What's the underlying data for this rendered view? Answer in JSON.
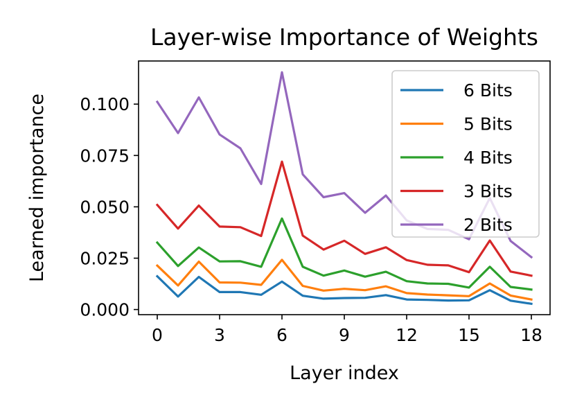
{
  "chart_data": {
    "type": "line",
    "title": "Layer-wise Importance of Weights",
    "xlabel": "Layer index",
    "ylabel": "Learned importance",
    "x": [
      0,
      1,
      2,
      3,
      4,
      5,
      6,
      7,
      8,
      9,
      10,
      11,
      12,
      13,
      14,
      15,
      16,
      17,
      18
    ],
    "xlim": [
      -0.9,
      18.9
    ],
    "ylim": [
      -0.0025,
      0.121
    ],
    "xticks": [
      0,
      3,
      6,
      9,
      12,
      15,
      18
    ],
    "xtick_labels": [
      "0",
      "3",
      "6",
      "9",
      "12",
      "15",
      "18"
    ],
    "yticks": [
      0.0,
      0.025,
      0.05,
      0.075,
      0.1
    ],
    "ytick_labels": [
      "0.000",
      "0.025",
      "0.050",
      "0.075",
      "0.100"
    ],
    "grid": false,
    "legend_position": "top-right",
    "series": [
      {
        "name": "6 Bits",
        "color": "#1f77b4",
        "values": [
          0.0162,
          0.0063,
          0.0159,
          0.0085,
          0.0085,
          0.0072,
          0.0136,
          0.0067,
          0.0053,
          0.0056,
          0.0057,
          0.007,
          0.0049,
          0.0047,
          0.0044,
          0.0045,
          0.0094,
          0.0043,
          0.0028
        ]
      },
      {
        "name": "5 Bits",
        "color": "#ff7f0e",
        "values": [
          0.0214,
          0.0117,
          0.0233,
          0.0132,
          0.0131,
          0.012,
          0.0242,
          0.0115,
          0.0092,
          0.0101,
          0.0094,
          0.0113,
          0.008,
          0.0073,
          0.0069,
          0.0065,
          0.0127,
          0.0068,
          0.0049
        ]
      },
      {
        "name": "4 Bits",
        "color": "#2ca02c",
        "values": [
          0.0326,
          0.0212,
          0.0302,
          0.0234,
          0.0235,
          0.0208,
          0.0443,
          0.0208,
          0.0165,
          0.019,
          0.016,
          0.0184,
          0.0138,
          0.0127,
          0.0125,
          0.0107,
          0.0208,
          0.011,
          0.0097
        ]
      },
      {
        "name": "3 Bits",
        "color": "#d62728",
        "values": [
          0.0509,
          0.0394,
          0.0506,
          0.0404,
          0.0401,
          0.0358,
          0.072,
          0.036,
          0.0292,
          0.0335,
          0.0271,
          0.0303,
          0.0241,
          0.0218,
          0.0215,
          0.0182,
          0.0336,
          0.0185,
          0.0165
        ]
      },
      {
        "name": "2 Bits",
        "color": "#9467bd",
        "values": [
          0.1011,
          0.0859,
          0.1033,
          0.0852,
          0.0785,
          0.0611,
          0.1155,
          0.0658,
          0.0547,
          0.0567,
          0.0471,
          0.0555,
          0.0434,
          0.0392,
          0.0388,
          0.0342,
          0.0543,
          0.0334,
          0.0255
        ]
      }
    ]
  }
}
